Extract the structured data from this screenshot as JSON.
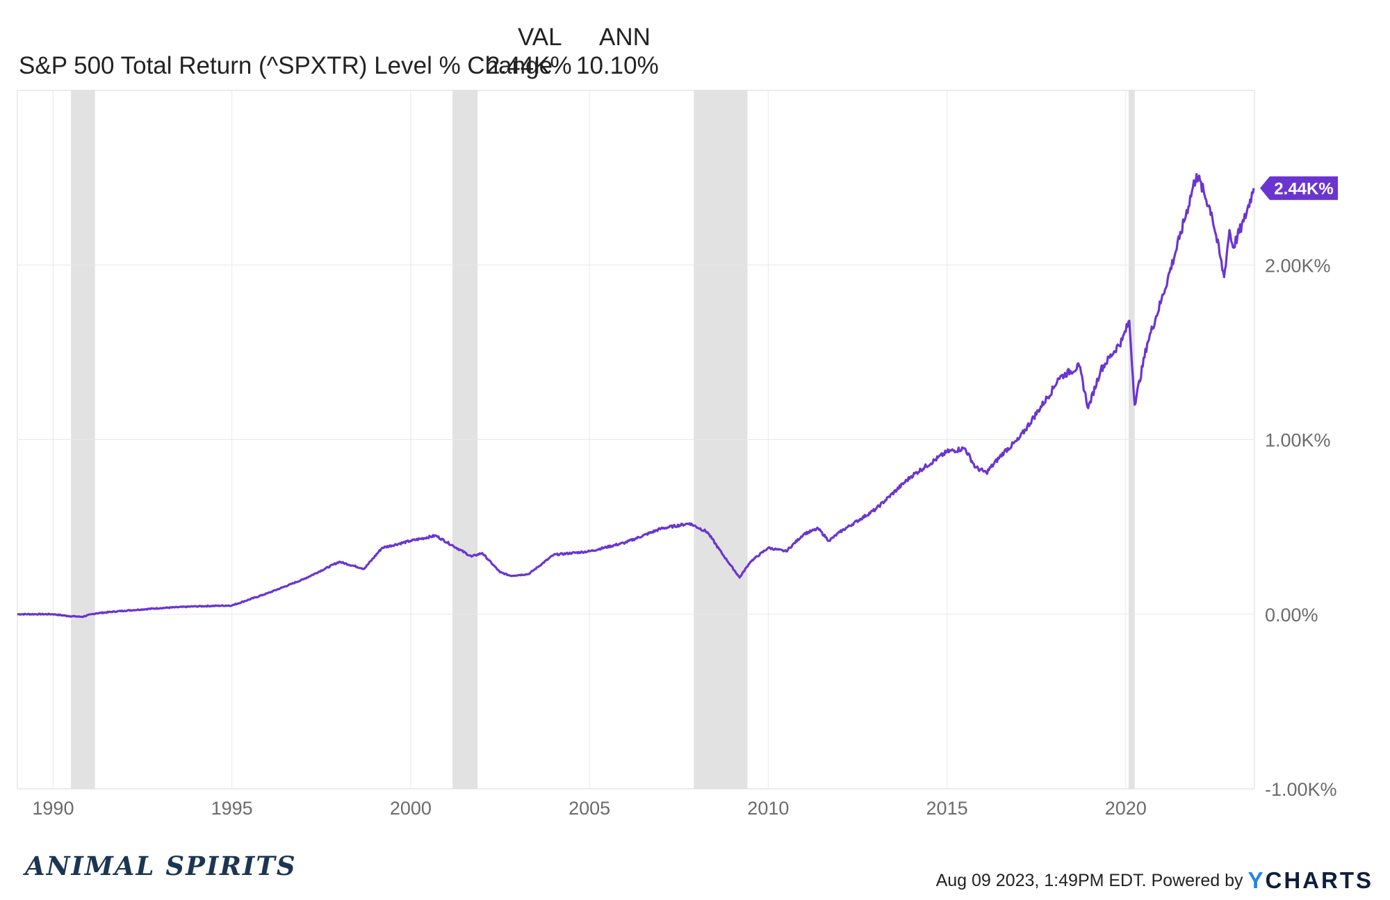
{
  "header": {
    "val_heading": "VAL",
    "ann_heading": "ANN",
    "series_label": "S&P 500 Total Return (^SPXTR) Level % Change",
    "val": "2.44K%",
    "ann": "10.10%"
  },
  "colors": {
    "line": "#6a35cf",
    "recession": "#e2e2e2",
    "grid": "#e8e8e8",
    "tag_text": "#ffffff"
  },
  "chart_data": {
    "type": "line",
    "title": "",
    "xlabel": "",
    "ylabel": "",
    "x_ticks": [
      "1990",
      "1995",
      "2000",
      "2005",
      "2010",
      "2015",
      "2020"
    ],
    "y_ticks": [
      "2.00K%",
      "1.00K%",
      "0.00%",
      "-1.00K%"
    ],
    "y_tick_values": [
      2000,
      1000,
      0,
      -1000
    ],
    "xlim": [
      1989.0,
      2023.6
    ],
    "ylim": [
      -1000,
      3000
    ],
    "y_unit": "%",
    "grid": true,
    "last_value_label": "2.44K%",
    "recessions": [
      [
        1990.5,
        1991.17
      ],
      [
        2001.17,
        2001.87
      ],
      [
        2007.92,
        2009.42
      ],
      [
        2020.08,
        2020.25
      ]
    ],
    "series": [
      {
        "values": [
          [
            1989.0,
            0
          ],
          [
            1989.5,
            0
          ],
          [
            1990.0,
            0
          ],
          [
            1990.4,
            -10
          ],
          [
            1990.8,
            -15
          ],
          [
            1991.2,
            5
          ],
          [
            1992.0,
            20
          ],
          [
            1993.0,
            35
          ],
          [
            1994.0,
            45
          ],
          [
            1995.0,
            50
          ],
          [
            1996.0,
            120
          ],
          [
            1997.0,
            200
          ],
          [
            1998.0,
            300
          ],
          [
            1998.7,
            260
          ],
          [
            1999.2,
            380
          ],
          [
            2000.0,
            420
          ],
          [
            2000.7,
            450
          ],
          [
            2001.2,
            390
          ],
          [
            2001.7,
            330
          ],
          [
            2002.0,
            350
          ],
          [
            2002.5,
            240
          ],
          [
            2002.8,
            220
          ],
          [
            2003.3,
            230
          ],
          [
            2004.0,
            340
          ],
          [
            2005.0,
            360
          ],
          [
            2006.0,
            410
          ],
          [
            2007.0,
            490
          ],
          [
            2007.8,
            520
          ],
          [
            2008.3,
            470
          ],
          [
            2008.7,
            350
          ],
          [
            2009.2,
            210
          ],
          [
            2009.5,
            300
          ],
          [
            2010.0,
            380
          ],
          [
            2010.5,
            360
          ],
          [
            2011.0,
            460
          ],
          [
            2011.4,
            490
          ],
          [
            2011.7,
            420
          ],
          [
            2012.0,
            470
          ],
          [
            2013.0,
            600
          ],
          [
            2014.0,
            790
          ],
          [
            2015.0,
            930
          ],
          [
            2015.5,
            950
          ],
          [
            2015.8,
            840
          ],
          [
            2016.1,
            810
          ],
          [
            2016.6,
            930
          ],
          [
            2017.0,
            1000
          ],
          [
            2018.0,
            1300
          ],
          [
            2018.1,
            1350
          ],
          [
            2018.7,
            1420
          ],
          [
            2018.95,
            1180
          ],
          [
            2019.3,
            1400
          ],
          [
            2019.9,
            1570
          ],
          [
            2020.1,
            1680
          ],
          [
            2020.25,
            1200
          ],
          [
            2020.6,
            1550
          ],
          [
            2021.0,
            1800
          ],
          [
            2021.5,
            2150
          ],
          [
            2021.98,
            2520
          ],
          [
            2022.4,
            2300
          ],
          [
            2022.75,
            1930
          ],
          [
            2022.9,
            2200
          ],
          [
            2023.0,
            2100
          ],
          [
            2023.3,
            2250
          ],
          [
            2023.58,
            2440
          ]
        ]
      }
    ]
  },
  "footer": {
    "logo": "ANIMAL SPIRITS",
    "timestamp": "Aug 09 2023, 1:49PM EDT. Powered by",
    "brand_y": "Y",
    "brand_rest": "CHARTS"
  }
}
